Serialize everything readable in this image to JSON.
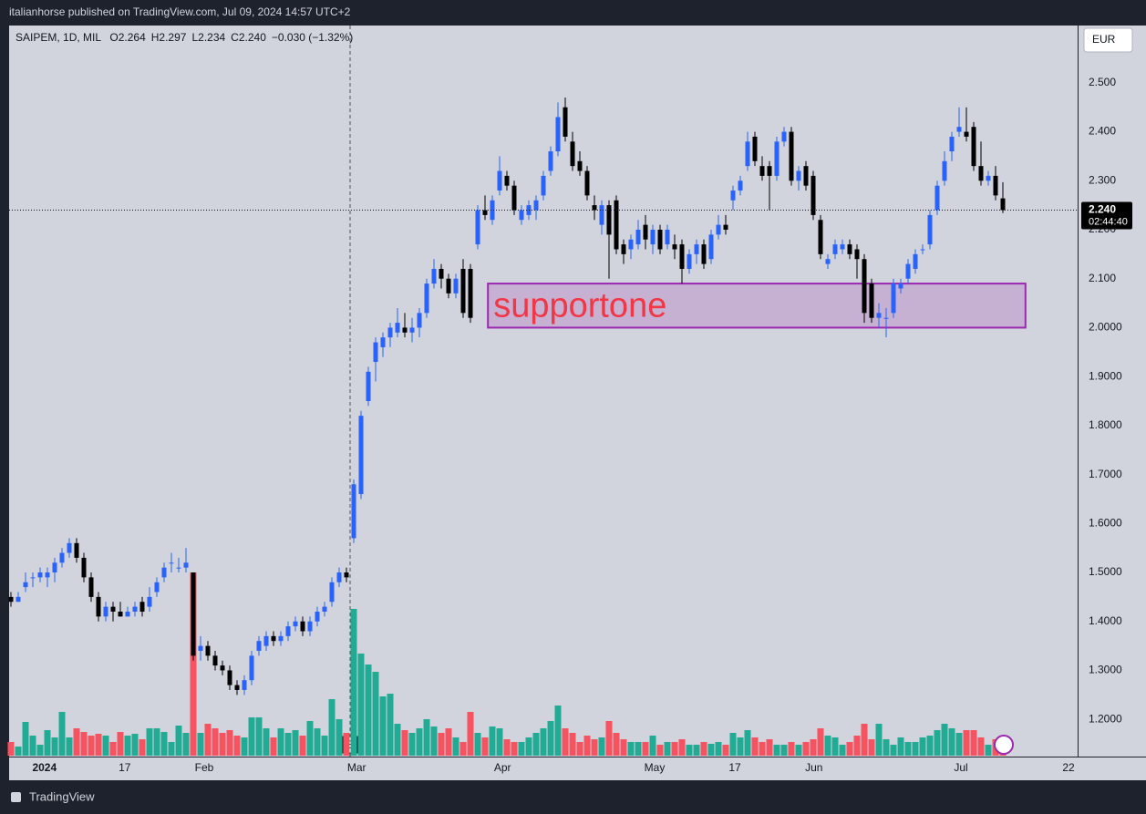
{
  "header": "italianhorse published on TradingView.com, Jul 09, 2024 14:57 UTC+2",
  "footer": "TradingView",
  "chart_data": {
    "type": "candlestick",
    "legend": {
      "symbol": "SAIPEM, 1D, MIL",
      "items": [
        {
          "key": "O",
          "text": "2.264"
        },
        {
          "key": "H",
          "text": "2.297"
        },
        {
          "key": "L",
          "text": "2.234"
        },
        {
          "key": "C",
          "text": "2.240"
        }
      ],
      "change": "−0.030 (−1.32%)"
    },
    "currency": "EUR",
    "last_price": {
      "value": 2.24,
      "label": "2.240",
      "countdown": "02:44:40"
    },
    "annotation": {
      "text": "supportone",
      "y": [
        2.0,
        2.09
      ],
      "x": [
        65.4,
        139.1
      ],
      "color": "#9c27b0",
      "text_color": "#f23645"
    },
    "earnings": {
      "label": "E",
      "x": 46.5
    },
    "up_color": "#2962ff",
    "down_color": "#000000",
    "volume_up_color": "#22ab94",
    "volume_down_color": "#f7525f",
    "grid": false,
    "xlim": [
      -0.25,
      146.25
    ],
    "ylim": [
      1.124,
      2.617
    ],
    "xticks": [
      {
        "value": 4.6,
        "label": "2024"
      },
      {
        "value": 15.6,
        "label": "17"
      },
      {
        "value": 26.5,
        "label": "Feb"
      },
      {
        "value": 47.4,
        "label": "Mar"
      },
      {
        "value": 67.4,
        "label": "Apr"
      },
      {
        "value": 88.25,
        "label": "May"
      },
      {
        "value": 99.25,
        "label": "17"
      },
      {
        "value": 110.1,
        "label": "Jun"
      },
      {
        "value": 130.25,
        "label": "Jul"
      },
      {
        "value": 145,
        "label": "22"
      }
    ],
    "yticks": [
      {
        "value": 2.5,
        "label": "2.500"
      },
      {
        "value": 2.4,
        "label": "2.400"
      },
      {
        "value": 2.3,
        "label": "2.300"
      },
      {
        "value": 2.2,
        "label": "2.200"
      },
      {
        "value": 2.1,
        "label": "2.100"
      },
      {
        "value": 2.0,
        "label": "2.0000"
      },
      {
        "value": 1.9,
        "label": "1.9000"
      },
      {
        "value": 1.8,
        "label": "1.8000"
      },
      {
        "value": 1.7,
        "label": "1.7000"
      },
      {
        "value": 1.6,
        "label": "1.6000"
      },
      {
        "value": 1.5,
        "label": "1.5000"
      },
      {
        "value": 1.4,
        "label": "1.4000"
      },
      {
        "value": 1.3,
        "label": "1.3000"
      },
      {
        "value": 1.2,
        "label": "1.2000"
      }
    ],
    "ohlc": [
      [
        1.45,
        1.46,
        1.43,
        1.44
      ],
      [
        1.44,
        1.46,
        1.44,
        1.45
      ],
      [
        1.47,
        1.5,
        1.46,
        1.48
      ],
      [
        1.49,
        1.5,
        1.47,
        1.49
      ],
      [
        1.49,
        1.51,
        1.48,
        1.5
      ],
      [
        1.49,
        1.51,
        1.47,
        1.5
      ],
      [
        1.5,
        1.53,
        1.48,
        1.52
      ],
      [
        1.52,
        1.55,
        1.51,
        1.54
      ],
      [
        1.54,
        1.57,
        1.53,
        1.56
      ],
      [
        1.56,
        1.57,
        1.52,
        1.53
      ],
      [
        1.53,
        1.54,
        1.48,
        1.49
      ],
      [
        1.49,
        1.5,
        1.44,
        1.45
      ],
      [
        1.45,
        1.46,
        1.4,
        1.41
      ],
      [
        1.41,
        1.44,
        1.4,
        1.43
      ],
      [
        1.43,
        1.44,
        1.4,
        1.42
      ],
      [
        1.42,
        1.44,
        1.41,
        1.41
      ],
      [
        1.41,
        1.43,
        1.41,
        1.42
      ],
      [
        1.42,
        1.44,
        1.41,
        1.43
      ],
      [
        1.44,
        1.45,
        1.41,
        1.42
      ],
      [
        1.43,
        1.47,
        1.42,
        1.45
      ],
      [
        1.46,
        1.49,
        1.45,
        1.48
      ],
      [
        1.49,
        1.52,
        1.48,
        1.51
      ],
      [
        1.52,
        1.54,
        1.5,
        1.52
      ],
      [
        1.51,
        1.53,
        1.5,
        1.51
      ],
      [
        1.51,
        1.55,
        1.5,
        1.52
      ],
      [
        1.5,
        1.5,
        1.32,
        1.33
      ],
      [
        1.34,
        1.37,
        1.32,
        1.35
      ],
      [
        1.35,
        1.36,
        1.32,
        1.33
      ],
      [
        1.33,
        1.34,
        1.3,
        1.31
      ],
      [
        1.31,
        1.32,
        1.29,
        1.3
      ],
      [
        1.3,
        1.31,
        1.26,
        1.27
      ],
      [
        1.27,
        1.28,
        1.25,
        1.26
      ],
      [
        1.26,
        1.29,
        1.25,
        1.28
      ],
      [
        1.28,
        1.34,
        1.27,
        1.33
      ],
      [
        1.34,
        1.37,
        1.33,
        1.36
      ],
      [
        1.35,
        1.38,
        1.34,
        1.37
      ],
      [
        1.37,
        1.38,
        1.35,
        1.36
      ],
      [
        1.36,
        1.38,
        1.35,
        1.37
      ],
      [
        1.37,
        1.4,
        1.36,
        1.39
      ],
      [
        1.39,
        1.41,
        1.38,
        1.4
      ],
      [
        1.4,
        1.41,
        1.37,
        1.38
      ],
      [
        1.38,
        1.41,
        1.37,
        1.4
      ],
      [
        1.4,
        1.43,
        1.39,
        1.42
      ],
      [
        1.42,
        1.44,
        1.41,
        1.43
      ],
      [
        1.44,
        1.49,
        1.43,
        1.48
      ],
      [
        1.48,
        1.51,
        1.47,
        1.5
      ],
      [
        1.5,
        1.51,
        1.48,
        1.49
      ],
      [
        1.57,
        1.69,
        1.56,
        1.68
      ],
      [
        1.66,
        1.83,
        1.65,
        1.82
      ],
      [
        1.85,
        1.92,
        1.84,
        1.91
      ],
      [
        1.93,
        1.98,
        1.89,
        1.97
      ],
      [
        1.96,
        1.99,
        1.94,
        1.98
      ],
      [
        1.98,
        2.01,
        1.96,
        2.0
      ],
      [
        1.99,
        2.04,
        1.98,
        2.01
      ],
      [
        2.0,
        2.03,
        1.98,
        1.99
      ],
      [
        1.99,
        2.02,
        1.97,
        2.0
      ],
      [
        2.0,
        2.04,
        1.98,
        2.03
      ],
      [
        2.03,
        2.1,
        2.02,
        2.09
      ],
      [
        2.09,
        2.14,
        2.08,
        2.12
      ],
      [
        2.12,
        2.13,
        2.08,
        2.1
      ],
      [
        2.1,
        2.11,
        2.06,
        2.07
      ],
      [
        2.07,
        2.11,
        2.06,
        2.1
      ],
      [
        2.12,
        2.14,
        2.02,
        2.03
      ],
      [
        2.12,
        2.13,
        2.01,
        2.02
      ],
      [
        2.17,
        2.25,
        2.16,
        2.24
      ],
      [
        2.24,
        2.27,
        2.22,
        2.23
      ],
      [
        2.22,
        2.27,
        2.21,
        2.26
      ],
      [
        2.28,
        2.35,
        2.27,
        2.32
      ],
      [
        2.31,
        2.32,
        2.28,
        2.29
      ],
      [
        2.29,
        2.3,
        2.23,
        2.24
      ],
      [
        2.22,
        2.25,
        2.21,
        2.24
      ],
      [
        2.23,
        2.26,
        2.22,
        2.25
      ],
      [
        2.24,
        2.27,
        2.22,
        2.26
      ],
      [
        2.27,
        2.32,
        2.26,
        2.31
      ],
      [
        2.32,
        2.37,
        2.31,
        2.36
      ],
      [
        2.36,
        2.46,
        2.35,
        2.43
      ],
      [
        2.45,
        2.47,
        2.38,
        2.39
      ],
      [
        2.38,
        2.4,
        2.32,
        2.33
      ],
      [
        2.34,
        2.36,
        2.31,
        2.32
      ],
      [
        2.32,
        2.33,
        2.26,
        2.27
      ],
      [
        2.25,
        2.27,
        2.22,
        2.24
      ],
      [
        2.21,
        2.26,
        2.19,
        2.25
      ],
      [
        2.25,
        2.26,
        2.1,
        2.19
      ],
      [
        2.26,
        2.27,
        2.15,
        2.16
      ],
      [
        2.17,
        2.18,
        2.13,
        2.15
      ],
      [
        2.16,
        2.19,
        2.14,
        2.18
      ],
      [
        2.17,
        2.22,
        2.16,
        2.2
      ],
      [
        2.21,
        2.23,
        2.16,
        2.18
      ],
      [
        2.17,
        2.21,
        2.15,
        2.2
      ],
      [
        2.2,
        2.21,
        2.15,
        2.16
      ],
      [
        2.17,
        2.21,
        2.16,
        2.2
      ],
      [
        2.17,
        2.19,
        2.14,
        2.16
      ],
      [
        2.17,
        2.18,
        2.09,
        2.12
      ],
      [
        2.12,
        2.16,
        2.11,
        2.15
      ],
      [
        2.15,
        2.18,
        2.13,
        2.17
      ],
      [
        2.17,
        2.18,
        2.12,
        2.13
      ],
      [
        2.14,
        2.2,
        2.13,
        2.19
      ],
      [
        2.19,
        2.23,
        2.18,
        2.21
      ],
      [
        2.21,
        2.23,
        2.19,
        2.2
      ],
      [
        2.26,
        2.29,
        2.24,
        2.28
      ],
      [
        2.28,
        2.31,
        2.27,
        2.3
      ],
      [
        2.33,
        2.4,
        2.32,
        2.38
      ],
      [
        2.39,
        2.4,
        2.33,
        2.34
      ],
      [
        2.33,
        2.35,
        2.3,
        2.31
      ],
      [
        2.33,
        2.34,
        2.24,
        2.31
      ],
      [
        2.31,
        2.39,
        2.3,
        2.38
      ],
      [
        2.38,
        2.41,
        2.37,
        2.4
      ],
      [
        2.4,
        2.41,
        2.29,
        2.3
      ],
      [
        2.3,
        2.33,
        2.28,
        2.32
      ],
      [
        2.33,
        2.34,
        2.28,
        2.29
      ],
      [
        2.31,
        2.32,
        2.22,
        2.23
      ],
      [
        2.22,
        2.23,
        2.14,
        2.15
      ],
      [
        2.13,
        2.15,
        2.12,
        2.14
      ],
      [
        2.15,
        2.18,
        2.14,
        2.17
      ],
      [
        2.16,
        2.18,
        2.15,
        2.17
      ],
      [
        2.17,
        2.18,
        2.14,
        2.15
      ],
      [
        2.16,
        2.17,
        2.1,
        2.14
      ],
      [
        2.14,
        2.15,
        2.01,
        2.03
      ],
      [
        2.09,
        2.1,
        2.01,
        2.02
      ],
      [
        2.02,
        2.05,
        2.0,
        2.03
      ],
      [
        2.02,
        2.04,
        1.98,
        2.02
      ],
      [
        2.03,
        2.1,
        2.02,
        2.09
      ],
      [
        2.08,
        2.1,
        2.07,
        2.09
      ],
      [
        2.1,
        2.14,
        2.09,
        2.13
      ],
      [
        2.12,
        2.16,
        2.11,
        2.15
      ],
      [
        2.16,
        2.17,
        2.15,
        2.16
      ],
      [
        2.17,
        2.24,
        2.16,
        2.23
      ],
      [
        2.24,
        2.3,
        2.23,
        2.29
      ],
      [
        2.3,
        2.36,
        2.29,
        2.34
      ],
      [
        2.36,
        2.4,
        2.34,
        2.39
      ],
      [
        2.4,
        2.45,
        2.39,
        2.41
      ],
      [
        2.4,
        2.45,
        2.38,
        2.39
      ],
      [
        2.41,
        2.42,
        2.32,
        2.33
      ],
      [
        2.33,
        2.38,
        2.29,
        2.3
      ],
      [
        2.3,
        2.32,
        2.29,
        2.31
      ],
      [
        2.31,
        2.33,
        2.26,
        2.27
      ],
      [
        2.264,
        2.297,
        2.234,
        2.24
      ]
    ],
    "volume": [
      15,
      10,
      37,
      22,
      12,
      28,
      20,
      48,
      20,
      30,
      26,
      22,
      24,
      22,
      15,
      26,
      22,
      24,
      18,
      30,
      30,
      26,
      15,
      33,
      25,
      201,
      25,
      35,
      30,
      25,
      28,
      22,
      20,
      42,
      42,
      30,
      20,
      30,
      25,
      28,
      22,
      38,
      30,
      22,
      62,
      40,
      25,
      161,
      112,
      100,
      92,
      65,
      68,
      35,
      28,
      25,
      30,
      40,
      32,
      25,
      30,
      20,
      15,
      48,
      25,
      20,
      32,
      30,
      18,
      15,
      15,
      20,
      25,
      30,
      38,
      55,
      30,
      25,
      15,
      22,
      18,
      20,
      38,
      25,
      18,
      15,
      15,
      15,
      22,
      12,
      15,
      15,
      18,
      12,
      12,
      15,
      13,
      15,
      12,
      25,
      20,
      28,
      20,
      15,
      18,
      12,
      12,
      15,
      12,
      15,
      18,
      30,
      22,
      20,
      12,
      15,
      22,
      35,
      18,
      35,
      18,
      12,
      20,
      15,
      15,
      20,
      22,
      28,
      35,
      30,
      25,
      28,
      28,
      20,
      12,
      18,
      20
    ]
  }
}
